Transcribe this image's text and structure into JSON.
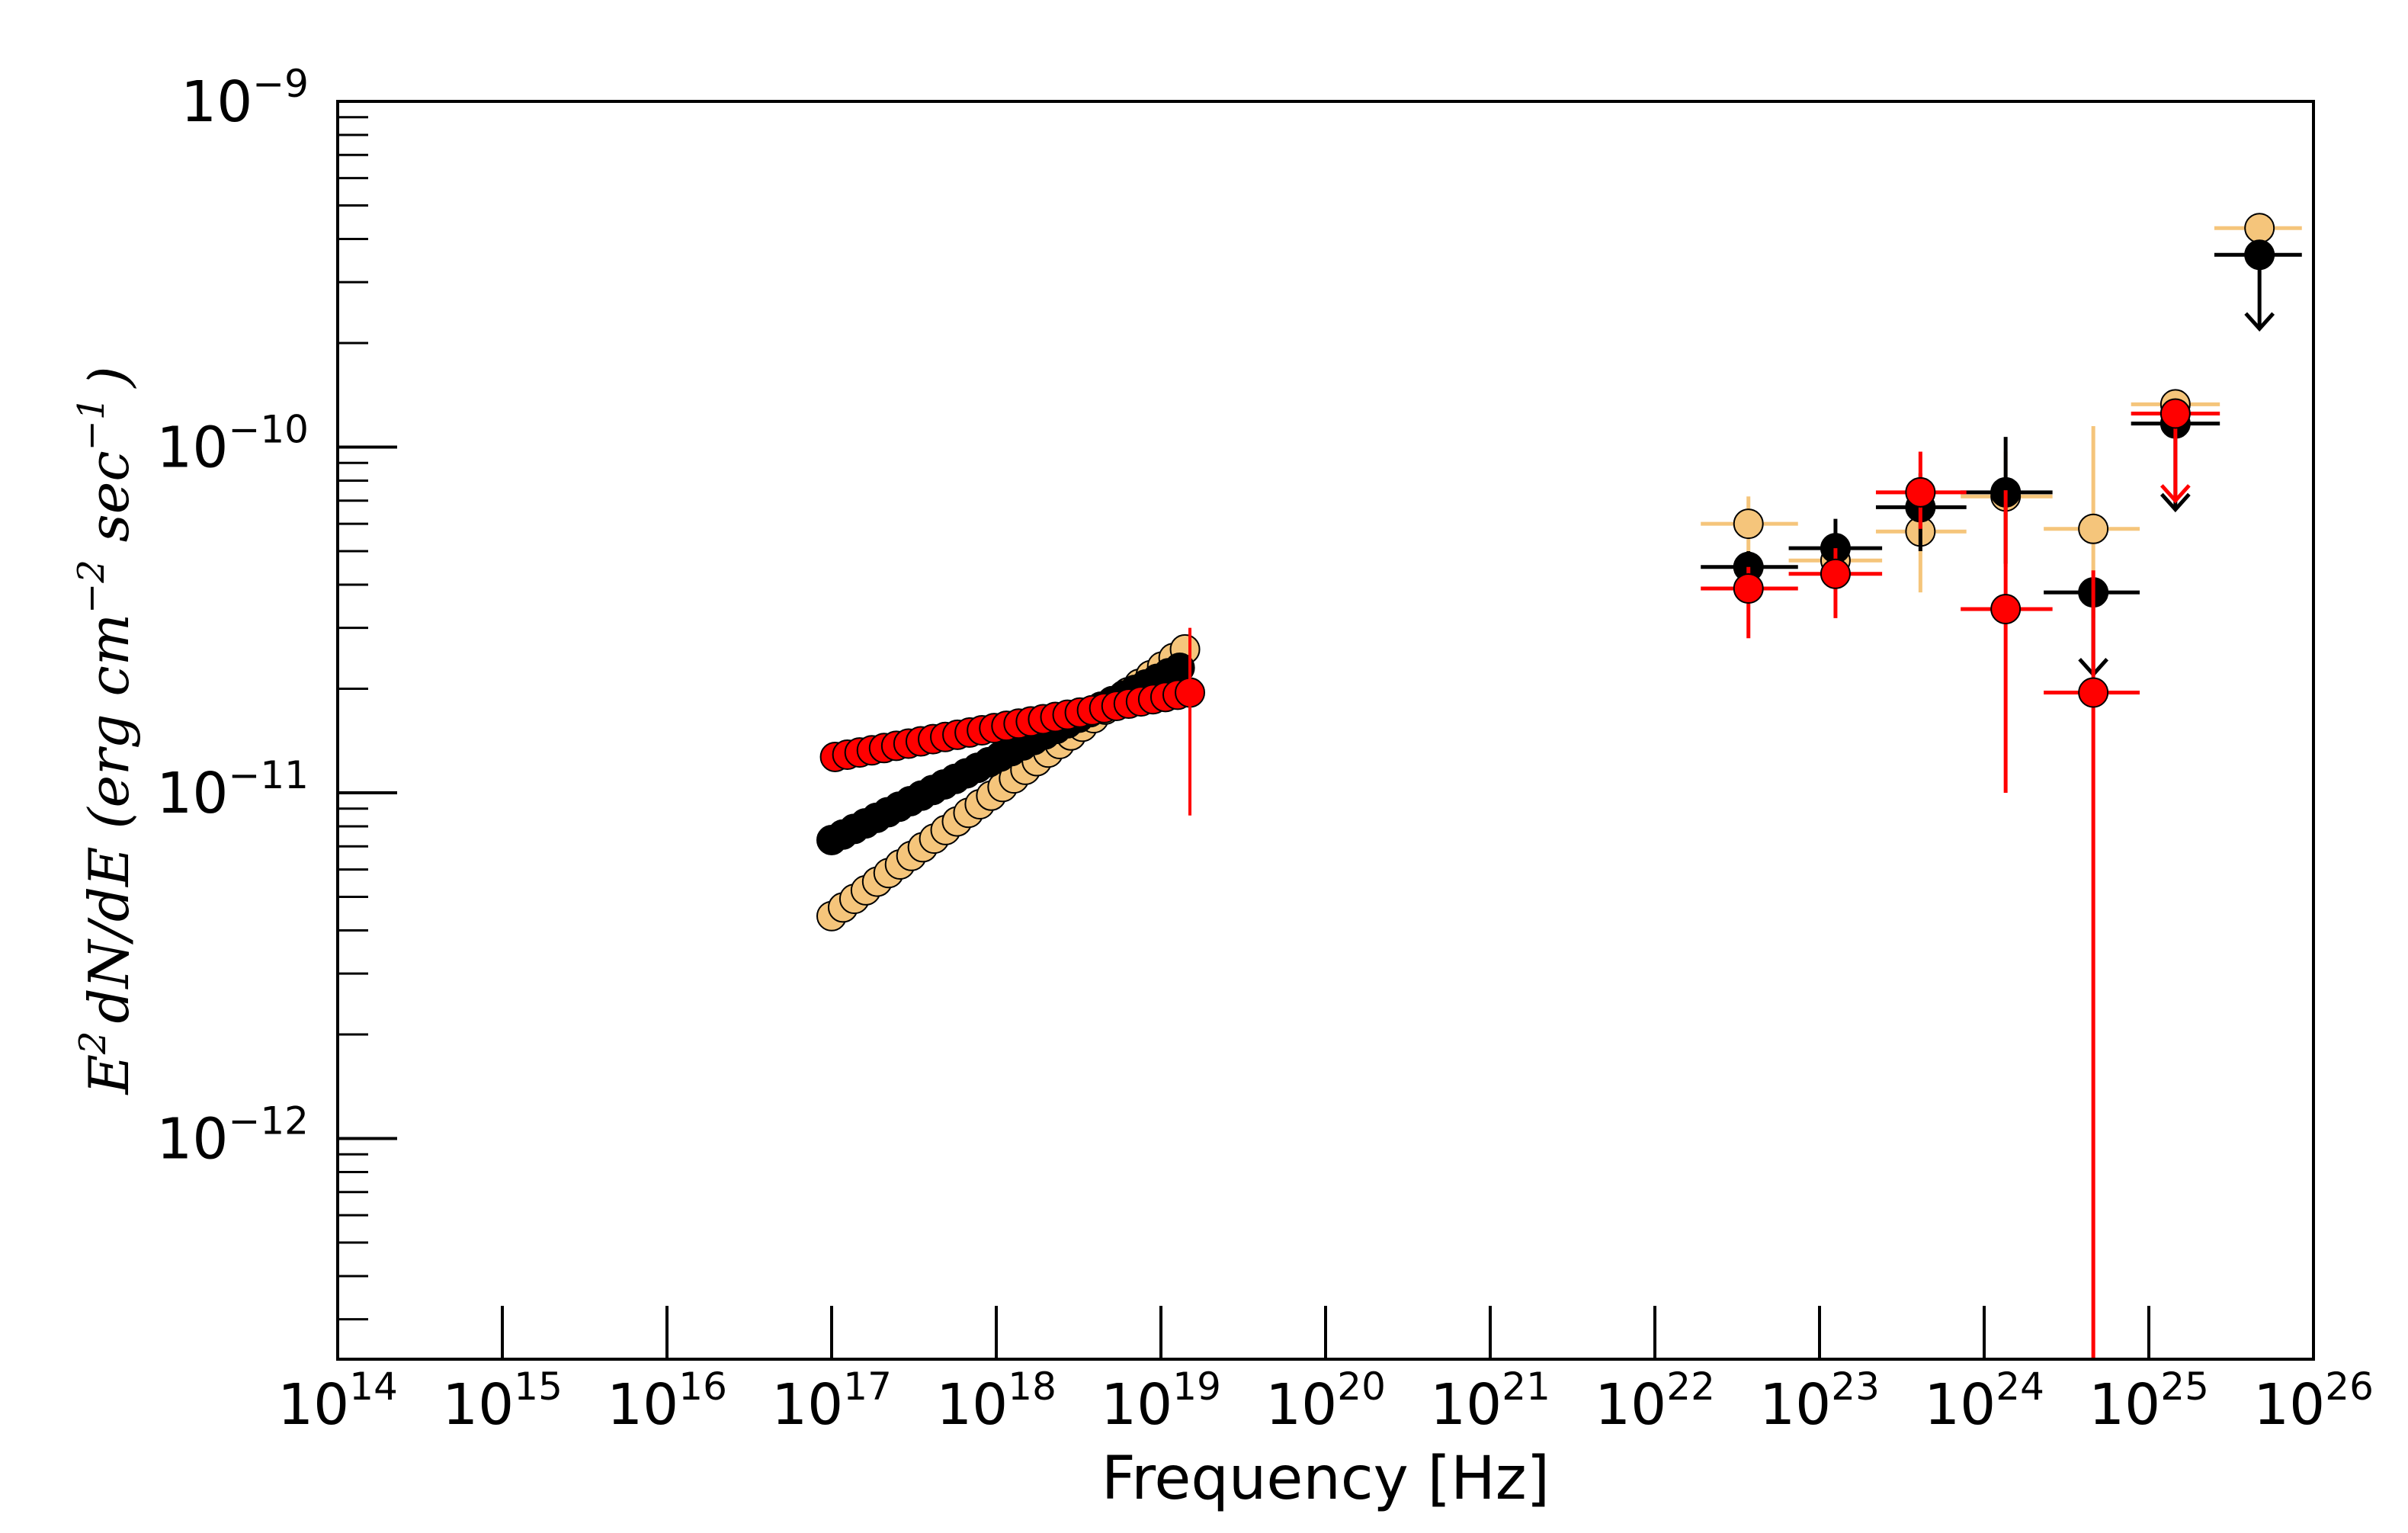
{
  "chart_data": {
    "type": "scatter",
    "title": "",
    "xlabel": "Frequency [Hz]",
    "ylabel": {
      "e": "E",
      "e_exp": "2",
      "dnde": "dN/dE (erg cm",
      "cm_exp": "−2",
      "sec": " sec",
      "sec_exp": "−1",
      "close": ")"
    },
    "x_scale": "log",
    "y_scale": "log",
    "xlim": [
      100000000000000.0,
      1e+26
    ],
    "ylim": [
      2.3e-13,
      1e-09
    ],
    "x_ticks": [
      {
        "base": "10",
        "exp": "14"
      },
      {
        "base": "10",
        "exp": "15"
      },
      {
        "base": "10",
        "exp": "16"
      },
      {
        "base": "10",
        "exp": "17"
      },
      {
        "base": "10",
        "exp": "18"
      },
      {
        "base": "10",
        "exp": "19"
      },
      {
        "base": "10",
        "exp": "20"
      },
      {
        "base": "10",
        "exp": "21"
      },
      {
        "base": "10",
        "exp": "22"
      },
      {
        "base": "10",
        "exp": "23"
      },
      {
        "base": "10",
        "exp": "24"
      },
      {
        "base": "10",
        "exp": "25"
      },
      {
        "base": "10",
        "exp": "26"
      }
    ],
    "y_ticks": [
      {
        "base": "10",
        "exp": "-9"
      },
      {
        "base": "10",
        "exp": "-10"
      },
      {
        "base": "10",
        "exp": "-11"
      },
      {
        "base": "10",
        "exp": "-12"
      }
    ],
    "grid": false,
    "series": [
      {
        "color": "#f5c57b",
        "xray_bowtie": {
          "x_start": 1e+17,
          "x_end": 1.4e+19,
          "y_start": 4.4e-12,
          "y_end": 2.6e-11,
          "points": 32
        },
        "gamma_points": [
          {
            "x": 3.7e+22,
            "y": 6e-11,
            "xlo": 1.9e+22,
            "xhi": 7.4e+22,
            "ylo": 5e-11,
            "yhi": 7.2e-11,
            "upper_limit": false
          },
          {
            "x": 1.25e+23,
            "y": 4.7e-11,
            "xlo": 6.5e+22,
            "xhi": 2.4e+23,
            "ylo": 4.1e-11,
            "yhi": 5.3e-11,
            "upper_limit": false
          },
          {
            "x": 4.1e+23,
            "y": 5.7e-11,
            "xlo": 2.2e+23,
            "xhi": 7.8e+23,
            "ylo": 3.8e-11,
            "yhi": 7.5e-11,
            "upper_limit": false
          },
          {
            "x": 1.35e+24,
            "y": 7.2e-11,
            "xlo": 7.2e+23,
            "xhi": 2.6e+24,
            "ylo": 4.5e-11,
            "yhi": 9.7e-11,
            "upper_limit": false
          },
          {
            "x": 4.6e+24,
            "y": 5.8e-11,
            "xlo": 2.3e+24,
            "xhi": 8.8e+24,
            "ylo": 3.2e-11,
            "yhi": 1.15e-10,
            "upper_limit": false
          },
          {
            "x": 1.45e+25,
            "y": 1.33e-10,
            "xlo": 7.8e+24,
            "xhi": 2.7e+25,
            "ylo": 1.2e-10,
            "yhi": 1.4e-10,
            "upper_limit": false
          },
          {
            "x": 4.7e+25,
            "y": 4.3e-10,
            "xlo": 2.5e+25,
            "xhi": 8.5e+25,
            "ylo": 3.9e-10,
            "yhi": 4.7e-10,
            "upper_limit": false
          }
        ]
      },
      {
        "color": "#000000",
        "xray_bowtie": {
          "x_start": 1e+17,
          "x_end": 1.3e+19,
          "y_start": 7.3e-12,
          "y_end": 2.3e-11,
          "points": 32
        },
        "gamma_points": [
          {
            "x": 3.7e+22,
            "y": 4.5e-11,
            "xlo": 1.9e+22,
            "xhi": 7.4e+22,
            "ylo": 4e-11,
            "yhi": 5e-11,
            "upper_limit": false
          },
          {
            "x": 1.25e+23,
            "y": 5.1e-11,
            "xlo": 6.5e+22,
            "xhi": 2.4e+23,
            "ylo": 4.3e-11,
            "yhi": 6.2e-11,
            "upper_limit": false
          },
          {
            "x": 4.1e+23,
            "y": 6.7e-11,
            "xlo": 2.2e+23,
            "xhi": 7.8e+23,
            "ylo": 5e-11,
            "yhi": 8.4e-11,
            "upper_limit": false
          },
          {
            "x": 1.35e+24,
            "y": 7.4e-11,
            "xlo": 7.2e+23,
            "xhi": 2.6e+24,
            "ylo": 4.6e-11,
            "yhi": 1.07e-10,
            "upper_limit": false
          },
          {
            "x": 4.6e+24,
            "y": 3.8e-11,
            "xlo": 2.3e+24,
            "xhi": 8.8e+24,
            "ylo": 2.2e-11,
            "yhi": 3.8e-11,
            "upper_limit": true
          },
          {
            "x": 1.45e+25,
            "y": 1.17e-10,
            "xlo": 7.8e+24,
            "xhi": 2.7e+25,
            "ylo": 6.6e-11,
            "yhi": 1.17e-10,
            "upper_limit": true
          },
          {
            "x": 4.7e+25,
            "y": 3.6e-10,
            "xlo": 2.5e+25,
            "xhi": 8.5e+25,
            "ylo": 2.2e-10,
            "yhi": 3.6e-10,
            "upper_limit": true
          }
        ]
      },
      {
        "color": "#ff0000",
        "xray_bowtie": {
          "x_start": 1.05e+17,
          "x_end": 1.5e+19,
          "y_start": 1.27e-11,
          "y_end": 1.95e-11,
          "points": 30
        },
        "gamma_points": [
          {
            "x": 3.7e+22,
            "y": 3.9e-11,
            "xlo": 1.9e+22,
            "xhi": 7.4e+22,
            "ylo": 2.8e-11,
            "yhi": 4.5e-11,
            "upper_limit": false
          },
          {
            "x": 1.25e+23,
            "y": 4.3e-11,
            "xlo": 6.5e+22,
            "xhi": 2.4e+23,
            "ylo": 3.2e-11,
            "yhi": 5.1e-11,
            "upper_limit": false
          },
          {
            "x": 4.1e+23,
            "y": 7.4e-11,
            "xlo": 2.2e+23,
            "xhi": 7.8e+23,
            "ylo": 5.8e-11,
            "yhi": 9.7e-11,
            "upper_limit": false
          },
          {
            "x": 1.35e+24,
            "y": 3.4e-11,
            "xlo": 7.2e+23,
            "xhi": 2.6e+24,
            "ylo": 1e-11,
            "yhi": 7.5e-11,
            "upper_limit": false
          },
          {
            "x": 4.6e+24,
            "y": 1.95e-11,
            "xlo": 2.3e+24,
            "xhi": 8.8e+24,
            "ylo": 2.3e-13,
            "yhi": 4.4e-11,
            "upper_limit": false
          },
          {
            "x": 1.45e+25,
            "y": 1.25e-10,
            "xlo": 7.8e+24,
            "xhi": 2.7e+25,
            "ylo": 7e-11,
            "yhi": 1.25e-10,
            "upper_limit": true
          }
        ],
        "xray_last_errorbar": {
          "x": 1.5e+19,
          "ylo": 8.6e-12,
          "yhi": 3e-11
        }
      }
    ]
  }
}
